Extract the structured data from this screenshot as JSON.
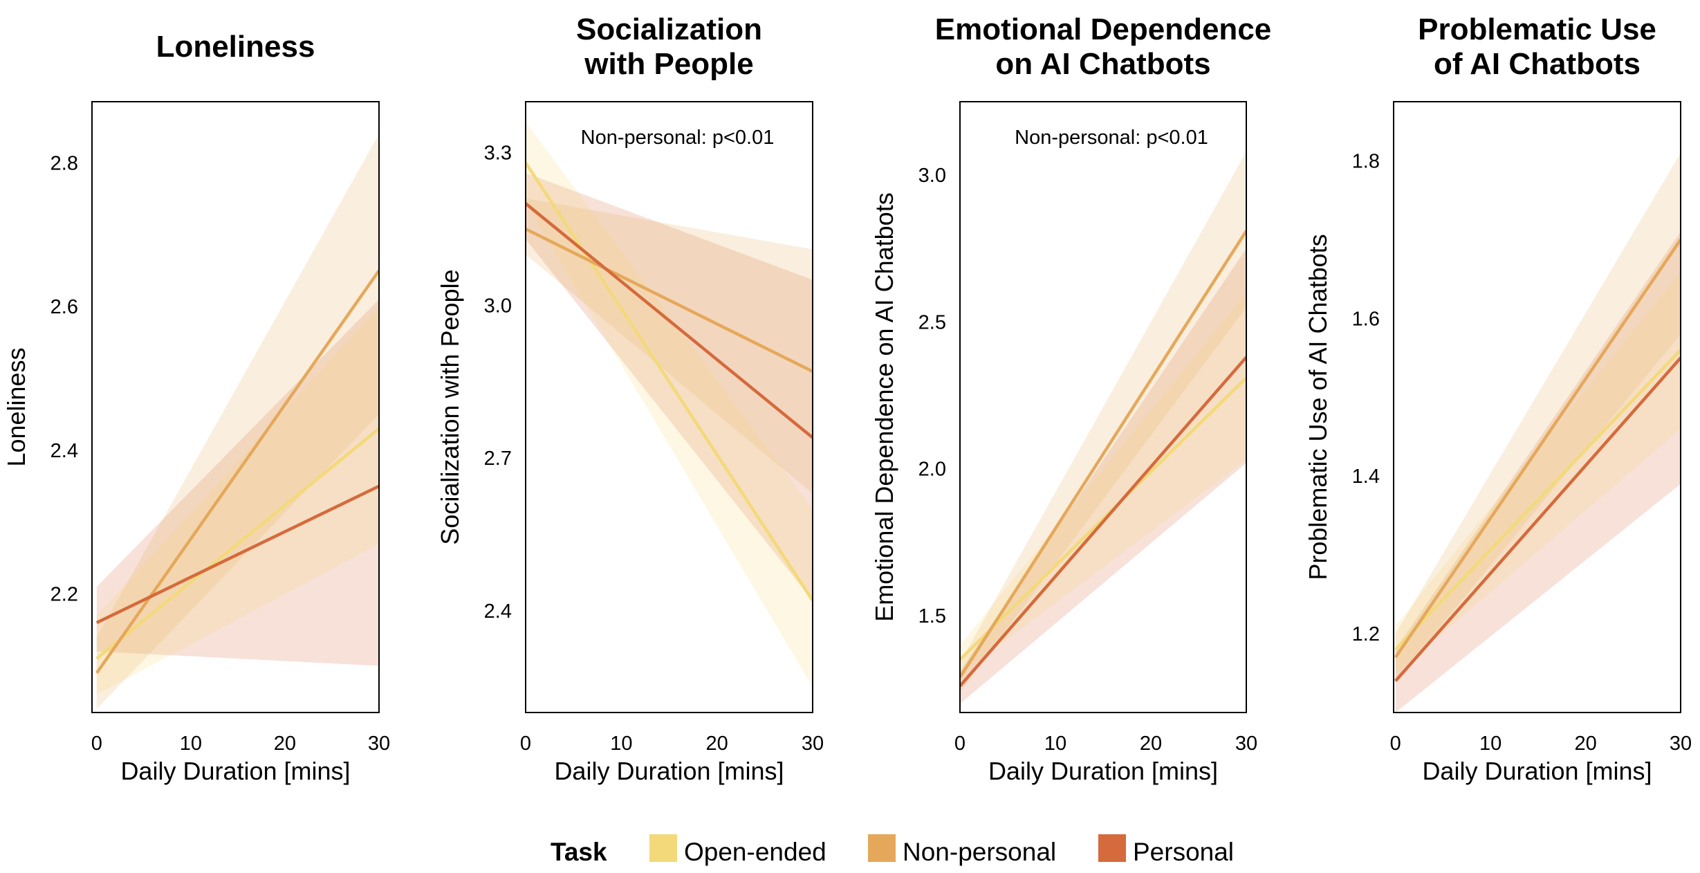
{
  "legend": {
    "title": "Task",
    "entries": [
      {
        "label": "Open-ended",
        "color": "#f3d97a"
      },
      {
        "label": "Non-personal",
        "color": "#e5a85a"
      },
      {
        "label": "Personal",
        "color": "#d56a3c"
      }
    ]
  },
  "chart_data": [
    {
      "type": "line",
      "title": [
        "Loneliness"
      ],
      "xlabel": "Daily Duration [mins]",
      "ylabel": "Loneliness",
      "xlim": [
        -0.5,
        30
      ],
      "ylim": [
        2.035,
        2.885
      ],
      "xticks": [
        0,
        10,
        20,
        30
      ],
      "yticks": [
        2.2,
        2.4,
        2.6,
        2.8
      ],
      "ytick_labels": [
        "2.2",
        "2.4",
        "2.6",
        "2.8"
      ],
      "annotation": "",
      "series": [
        {
          "name": "Open-ended",
          "x": [
            0,
            30
          ],
          "y": [
            2.11,
            2.43
          ],
          "lower": [
            2.06,
            2.27
          ],
          "upper": [
            2.17,
            2.6
          ]
        },
        {
          "name": "Non-personal",
          "x": [
            0,
            30
          ],
          "y": [
            2.09,
            2.65
          ],
          "lower": [
            2.04,
            2.45
          ],
          "upper": [
            2.14,
            2.84
          ]
        },
        {
          "name": "Personal",
          "x": [
            0,
            30
          ],
          "y": [
            2.16,
            2.35
          ],
          "lower": [
            2.12,
            2.1
          ],
          "upper": [
            2.21,
            2.61
          ]
        }
      ]
    },
    {
      "type": "line",
      "title": [
        "Socialization",
        "with People"
      ],
      "xlabel": "Daily Duration [mins]",
      "ylabel": "Socialization with People",
      "xlim": [
        0,
        30
      ],
      "ylim": [
        2.2,
        3.4
      ],
      "xticks": [
        0,
        10,
        20,
        30
      ],
      "yticks": [
        2.4,
        2.7,
        3.0,
        3.3
      ],
      "ytick_labels": [
        "2.4",
        "2.7",
        "3.0",
        "3.3"
      ],
      "annotation": "Non-personal: p<0.01",
      "series": [
        {
          "name": "Open-ended",
          "x": [
            0,
            30
          ],
          "y": [
            3.28,
            2.42
          ],
          "lower": [
            3.2,
            2.25
          ],
          "upper": [
            3.36,
            2.6
          ]
        },
        {
          "name": "Non-personal",
          "x": [
            0,
            30
          ],
          "y": [
            3.15,
            2.87
          ],
          "lower": [
            3.1,
            2.63
          ],
          "upper": [
            3.21,
            3.11
          ]
        },
        {
          "name": "Personal",
          "x": [
            0,
            30
          ],
          "y": [
            3.2,
            2.74
          ],
          "lower": [
            3.13,
            2.42
          ],
          "upper": [
            3.26,
            3.05
          ]
        }
      ]
    },
    {
      "type": "line",
      "title": [
        "Emotional Dependence",
        "on AI Chatbots"
      ],
      "xlabel": "Daily Duration [mins]",
      "ylabel": "Emotional Dependence on AI Chatbots",
      "xlim": [
        0,
        30
      ],
      "ylim": [
        1.17,
        3.25
      ],
      "xticks": [
        0,
        10,
        20,
        30
      ],
      "yticks": [
        1.5,
        2.0,
        2.5,
        3.0
      ],
      "ytick_labels": [
        "1.5",
        "2.0",
        "2.5",
        "3.0"
      ],
      "annotation": "Non-personal: p<0.01",
      "series": [
        {
          "name": "Open-ended",
          "x": [
            0,
            30
          ],
          "y": [
            1.35,
            2.31
          ],
          "lower": [
            1.3,
            2.03
          ],
          "upper": [
            1.4,
            2.6
          ]
        },
        {
          "name": "Non-personal",
          "x": [
            0,
            30
          ],
          "y": [
            1.29,
            2.81
          ],
          "lower": [
            1.24,
            2.55
          ],
          "upper": [
            1.34,
            3.08
          ]
        },
        {
          "name": "Personal",
          "x": [
            0,
            30
          ],
          "y": [
            1.26,
            2.38
          ],
          "lower": [
            1.2,
            2.02
          ],
          "upper": [
            1.31,
            2.75
          ]
        }
      ]
    },
    {
      "type": "line",
      "title": [
        "Problematic Use",
        "of AI Chatbots"
      ],
      "xlabel": "Daily Duration [mins]",
      "ylabel": "Problematic Use of AI Chatbots",
      "xlim": [
        -0.2,
        30
      ],
      "ylim": [
        1.1,
        1.875
      ],
      "xticks": [
        0,
        10,
        20,
        30
      ],
      "yticks": [
        1.2,
        1.4,
        1.6,
        1.8
      ],
      "ytick_labels": [
        "1.2",
        "1.4",
        "1.6",
        "1.8"
      ],
      "annotation": "",
      "series": [
        {
          "name": "Open-ended",
          "x": [
            0,
            30
          ],
          "y": [
            1.18,
            1.56
          ],
          "lower": [
            1.15,
            1.46
          ],
          "upper": [
            1.21,
            1.66
          ]
        },
        {
          "name": "Non-personal",
          "x": [
            0,
            30
          ],
          "y": [
            1.17,
            1.7
          ],
          "lower": [
            1.14,
            1.58
          ],
          "upper": [
            1.2,
            1.81
          ]
        },
        {
          "name": "Personal",
          "x": [
            0,
            30
          ],
          "y": [
            1.14,
            1.55
          ],
          "lower": [
            1.1,
            1.39
          ],
          "upper": [
            1.18,
            1.71
          ]
        }
      ]
    }
  ]
}
